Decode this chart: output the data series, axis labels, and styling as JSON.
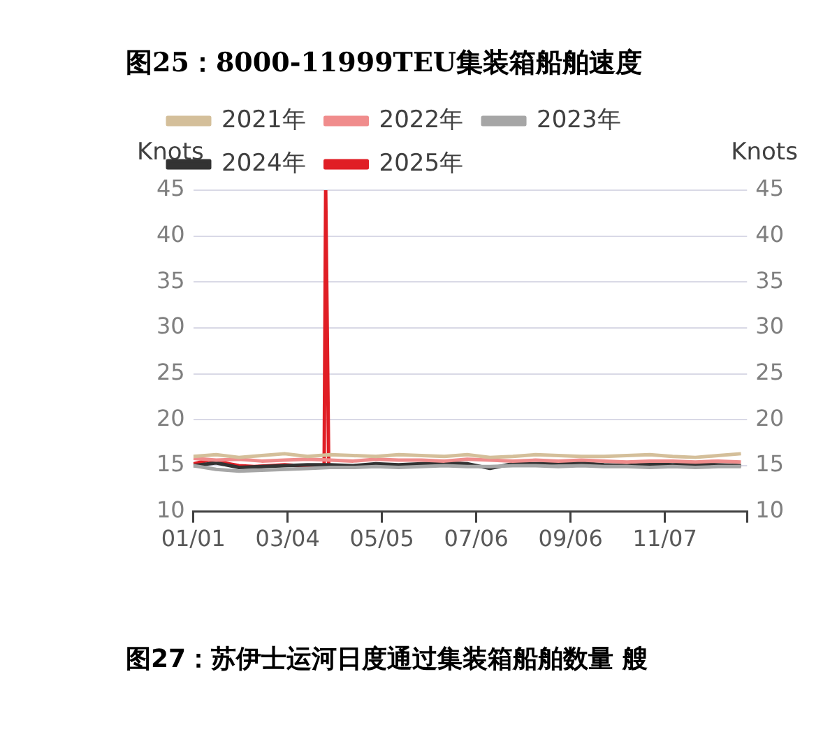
{
  "chart_data": {
    "type": "line",
    "title": "图25：8000-11999TEU集装箱船舶速度",
    "ylabel": "Knots",
    "y2label": "Knots",
    "annotations": [
      "图27：苏伊士运河日度通过集装箱船舶数量 艘"
    ],
    "xlim": [
      "--01-01",
      "--12-31"
    ],
    "xticks": [
      {
        "value": "--01-01",
        "label": "01/01"
      },
      {
        "value": "--03-04",
        "label": "03/04"
      },
      {
        "value": "--05-05",
        "label": "05/05"
      },
      {
        "value": "--07-06",
        "label": "07/06"
      },
      {
        "value": "--09-06",
        "label": "09/06"
      },
      {
        "value": "--11-07",
        "label": "11/07"
      },
      {
        "value": "--12-31",
        "label": null
      }
    ],
    "ylim": [
      10,
      45
    ],
    "yticks": [
      10,
      15,
      20,
      25,
      30,
      35,
      40,
      45
    ],
    "y2lim": [
      10,
      45
    ],
    "y2ticks": [
      10,
      15,
      20,
      25,
      30,
      35,
      40,
      45
    ],
    "grid": "y",
    "legend": "top",
    "marker": "none",
    "line_style": "solid",
    "series": [
      {
        "name": "2021年",
        "color": "#d4bf9a",
        "x": [
          "--01-01",
          "--01-16",
          "--01-31",
          "--02-15",
          "--03-02",
          "--03-17",
          "--04-01",
          "--04-16",
          "--05-01",
          "--05-16",
          "--05-31",
          "--06-15",
          "--06-30",
          "--07-15",
          "--07-30",
          "--08-14",
          "--08-29",
          "--09-13",
          "--09-28",
          "--10-13",
          "--10-28",
          "--11-12",
          "--11-27",
          "--12-12",
          "--12-27"
        ],
        "values": [
          16.0,
          16.2,
          15.9,
          16.1,
          16.3,
          16.0,
          16.2,
          16.1,
          16.0,
          16.2,
          16.1,
          16.0,
          16.2,
          15.9,
          16.0,
          16.2,
          16.1,
          16.0,
          16.0,
          16.1,
          16.2,
          16.0,
          15.9,
          16.1,
          16.3
        ]
      },
      {
        "name": "2022年",
        "color": "#f08c8c",
        "x": [
          "--01-01",
          "--01-16",
          "--01-31",
          "--02-15",
          "--03-02",
          "--03-17",
          "--04-01",
          "--04-16",
          "--05-01",
          "--05-16",
          "--05-31",
          "--06-15",
          "--06-30",
          "--07-15",
          "--07-30",
          "--08-14",
          "--08-29",
          "--09-13",
          "--09-28",
          "--10-13",
          "--10-28",
          "--11-12",
          "--11-27",
          "--12-12",
          "--12-27"
        ],
        "values": [
          15.8,
          15.6,
          15.7,
          15.5,
          15.6,
          15.7,
          15.6,
          15.5,
          15.7,
          15.6,
          15.6,
          15.5,
          15.7,
          15.6,
          15.5,
          15.6,
          15.5,
          15.6,
          15.5,
          15.4,
          15.5,
          15.5,
          15.4,
          15.5,
          15.4
        ]
      },
      {
        "name": "2023年",
        "color": "#a6a6a6",
        "x": [
          "--01-01",
          "--01-16",
          "--01-31",
          "--02-15",
          "--03-02",
          "--03-17",
          "--04-01",
          "--04-16",
          "--05-01",
          "--05-16",
          "--05-31",
          "--06-15",
          "--06-30",
          "--07-15",
          "--07-30",
          "--08-14",
          "--08-29",
          "--09-13",
          "--09-28",
          "--10-13",
          "--10-28",
          "--11-12",
          "--11-27",
          "--12-12",
          "--12-27"
        ],
        "values": [
          15.0,
          14.6,
          14.4,
          14.5,
          14.6,
          14.7,
          14.8,
          14.8,
          14.9,
          14.8,
          14.9,
          15.0,
          14.9,
          14.9,
          15.0,
          15.0,
          14.9,
          15.0,
          14.9,
          14.9,
          14.8,
          14.9,
          14.8,
          14.9,
          14.9
        ]
      },
      {
        "name": "2024年",
        "color": "#333333",
        "x": [
          "--01-01",
          "--01-16",
          "--01-31",
          "--02-15",
          "--03-02",
          "--03-17",
          "--04-01",
          "--04-16",
          "--05-01",
          "--05-16",
          "--05-31",
          "--06-15",
          "--06-30",
          "--07-15",
          "--07-30",
          "--08-14",
          "--08-29",
          "--09-13",
          "--09-28",
          "--10-13",
          "--10-28",
          "--11-12",
          "--11-27",
          "--12-12",
          "--12-27"
        ],
        "values": [
          15.0,
          15.3,
          14.8,
          14.9,
          15.0,
          15.1,
          15.1,
          15.0,
          15.2,
          15.1,
          15.2,
          15.3,
          15.2,
          14.7,
          15.2,
          15.2,
          15.3,
          15.3,
          15.1,
          15.0,
          15.2,
          15.1,
          15.2,
          15.1,
          15.0
        ]
      },
      {
        "name": "2025年",
        "color": "#e01e25",
        "x": [
          "--01-01",
          "--01-11",
          "--01-21",
          "--01-31",
          "--02-10",
          "--02-20",
          "--03-02",
          "--03-12",
          "--03-22",
          "--03-28",
          "--03-29",
          "--03-31",
          "--04-01"
        ],
        "values": [
          15.2,
          15.6,
          15.3,
          15.0,
          14.9,
          15.0,
          15.1,
          15.0,
          14.9,
          14.9,
          45,
          14.8,
          15.0
        ]
      }
    ]
  }
}
